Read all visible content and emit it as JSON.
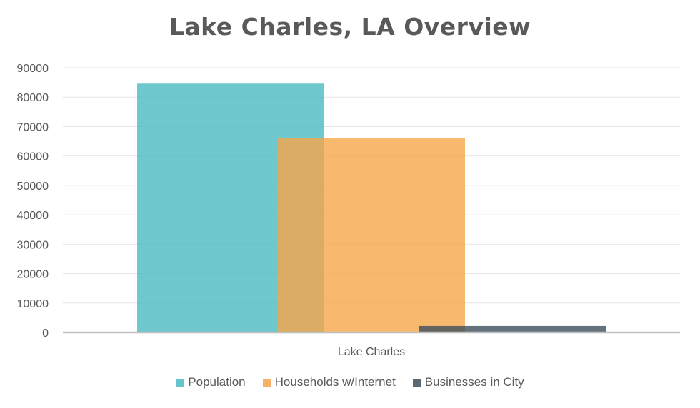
{
  "chart_data": {
    "type": "bar",
    "title": "Lake Charles, LA Overview",
    "categories": [
      "Lake Charles"
    ],
    "series": [
      {
        "name": "Population",
        "values": [
          84600
        ],
        "color": "#4bbac2"
      },
      {
        "name": "Households w/Internet",
        "values": [
          66000
        ],
        "color": "#f6a64a"
      },
      {
        "name": "Businesses in City",
        "values": [
          2200
        ],
        "color": "#3d4f5c"
      }
    ],
    "ylim": [
      0,
      90000
    ],
    "yticks": [
      0,
      10000,
      20000,
      30000,
      40000,
      50000,
      60000,
      70000,
      80000,
      90000
    ],
    "grid": true,
    "legend_position": "bottom"
  }
}
